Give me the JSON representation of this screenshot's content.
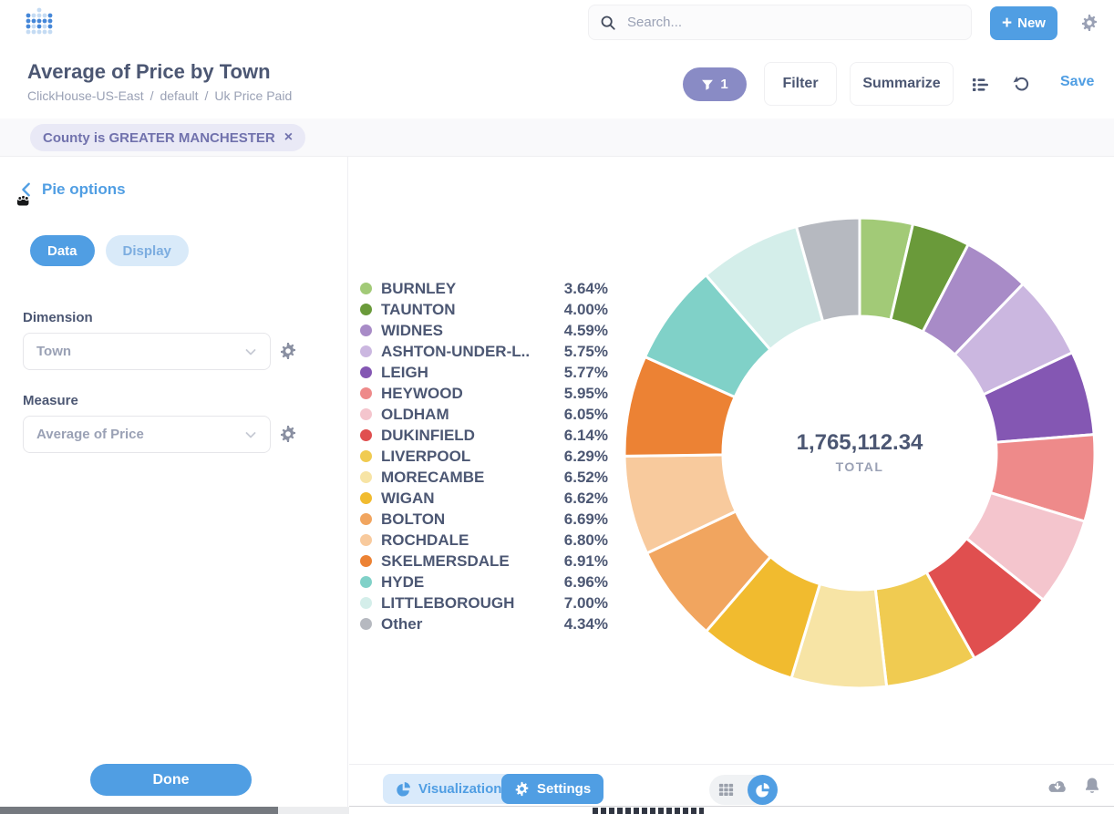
{
  "topbar": {
    "search_placeholder": "Search...",
    "new_label": "New",
    "plus": "+"
  },
  "titlebar": {
    "title": "Average of Price by Town",
    "breadcrumbs": [
      "ClickHouse-US-East",
      "default",
      "Uk Price Paid"
    ],
    "separator": "/",
    "filter_count": "1",
    "filter_label": "Filter",
    "summarize_label": "Summarize",
    "save_label": "Save"
  },
  "filter_chip": {
    "label": "County is GREATER MANCHESTER",
    "close": "×"
  },
  "sidebar": {
    "heading": "Pie options",
    "tab_data": "Data",
    "tab_display": "Display",
    "dimension_label": "Dimension",
    "dimension_value": "Town",
    "measure_label": "Measure",
    "measure_value": "Average of Price",
    "done_label": "Done"
  },
  "footer": {
    "visualization_label": "Visualization",
    "settings_label": "Settings"
  },
  "colors": {
    "brand": "#509EE3",
    "filter_accent": "#7172AD"
  },
  "chart_data": {
    "type": "pie",
    "style": "donut",
    "total_value": "1,765,112.34",
    "total_label": "TOTAL",
    "legend_position": "left",
    "start_angle_deg": -90,
    "direction": "clockwise",
    "slices": [
      {
        "label": "BURNLEY",
        "pct": 3.64,
        "pct_label": "3.64%",
        "color": "#A2CA77"
      },
      {
        "label": "TAUNTON",
        "pct": 4.0,
        "pct_label": "4.00%",
        "color": "#6A9A3A"
      },
      {
        "label": "WIDNES",
        "pct": 4.59,
        "pct_label": "4.59%",
        "color": "#A88BC7"
      },
      {
        "label": "ASHTON-UNDER-L..",
        "pct": 5.75,
        "pct_label": "5.75%",
        "color": "#CBB7E0"
      },
      {
        "label": "LEIGH",
        "pct": 5.77,
        "pct_label": "5.77%",
        "color": "#8457B3"
      },
      {
        "label": "HEYWOOD",
        "pct": 5.95,
        "pct_label": "5.95%",
        "color": "#EE8A8A"
      },
      {
        "label": "OLDHAM",
        "pct": 6.05,
        "pct_label": "6.05%",
        "color": "#F4C5CD"
      },
      {
        "label": "DUKINFIELD",
        "pct": 6.14,
        "pct_label": "6.14%",
        "color": "#E04F4F"
      },
      {
        "label": "LIVERPOOL",
        "pct": 6.29,
        "pct_label": "6.29%",
        "color": "#F0CB51"
      },
      {
        "label": "MORECAMBE",
        "pct": 6.52,
        "pct_label": "6.52%",
        "color": "#F7E4A5"
      },
      {
        "label": "WIGAN",
        "pct": 6.62,
        "pct_label": "6.62%",
        "color": "#F1BB2F"
      },
      {
        "label": "BOLTON",
        "pct": 6.69,
        "pct_label": "6.69%",
        "color": "#F1A55F"
      },
      {
        "label": "ROCHDALE",
        "pct": 6.8,
        "pct_label": "6.80%",
        "color": "#F8CA9D"
      },
      {
        "label": "SKELMERSDALE",
        "pct": 6.91,
        "pct_label": "6.91%",
        "color": "#EC8234"
      },
      {
        "label": "HYDE",
        "pct": 6.96,
        "pct_label": "6.96%",
        "color": "#80D1C8"
      },
      {
        "label": "LITTLEBOROUGH",
        "pct": 7.0,
        "pct_label": "7.00%",
        "color": "#D4EEEA"
      },
      {
        "label": "Other",
        "pct": 4.34,
        "pct_label": "4.34%",
        "color": "#B6B9C0"
      }
    ]
  }
}
